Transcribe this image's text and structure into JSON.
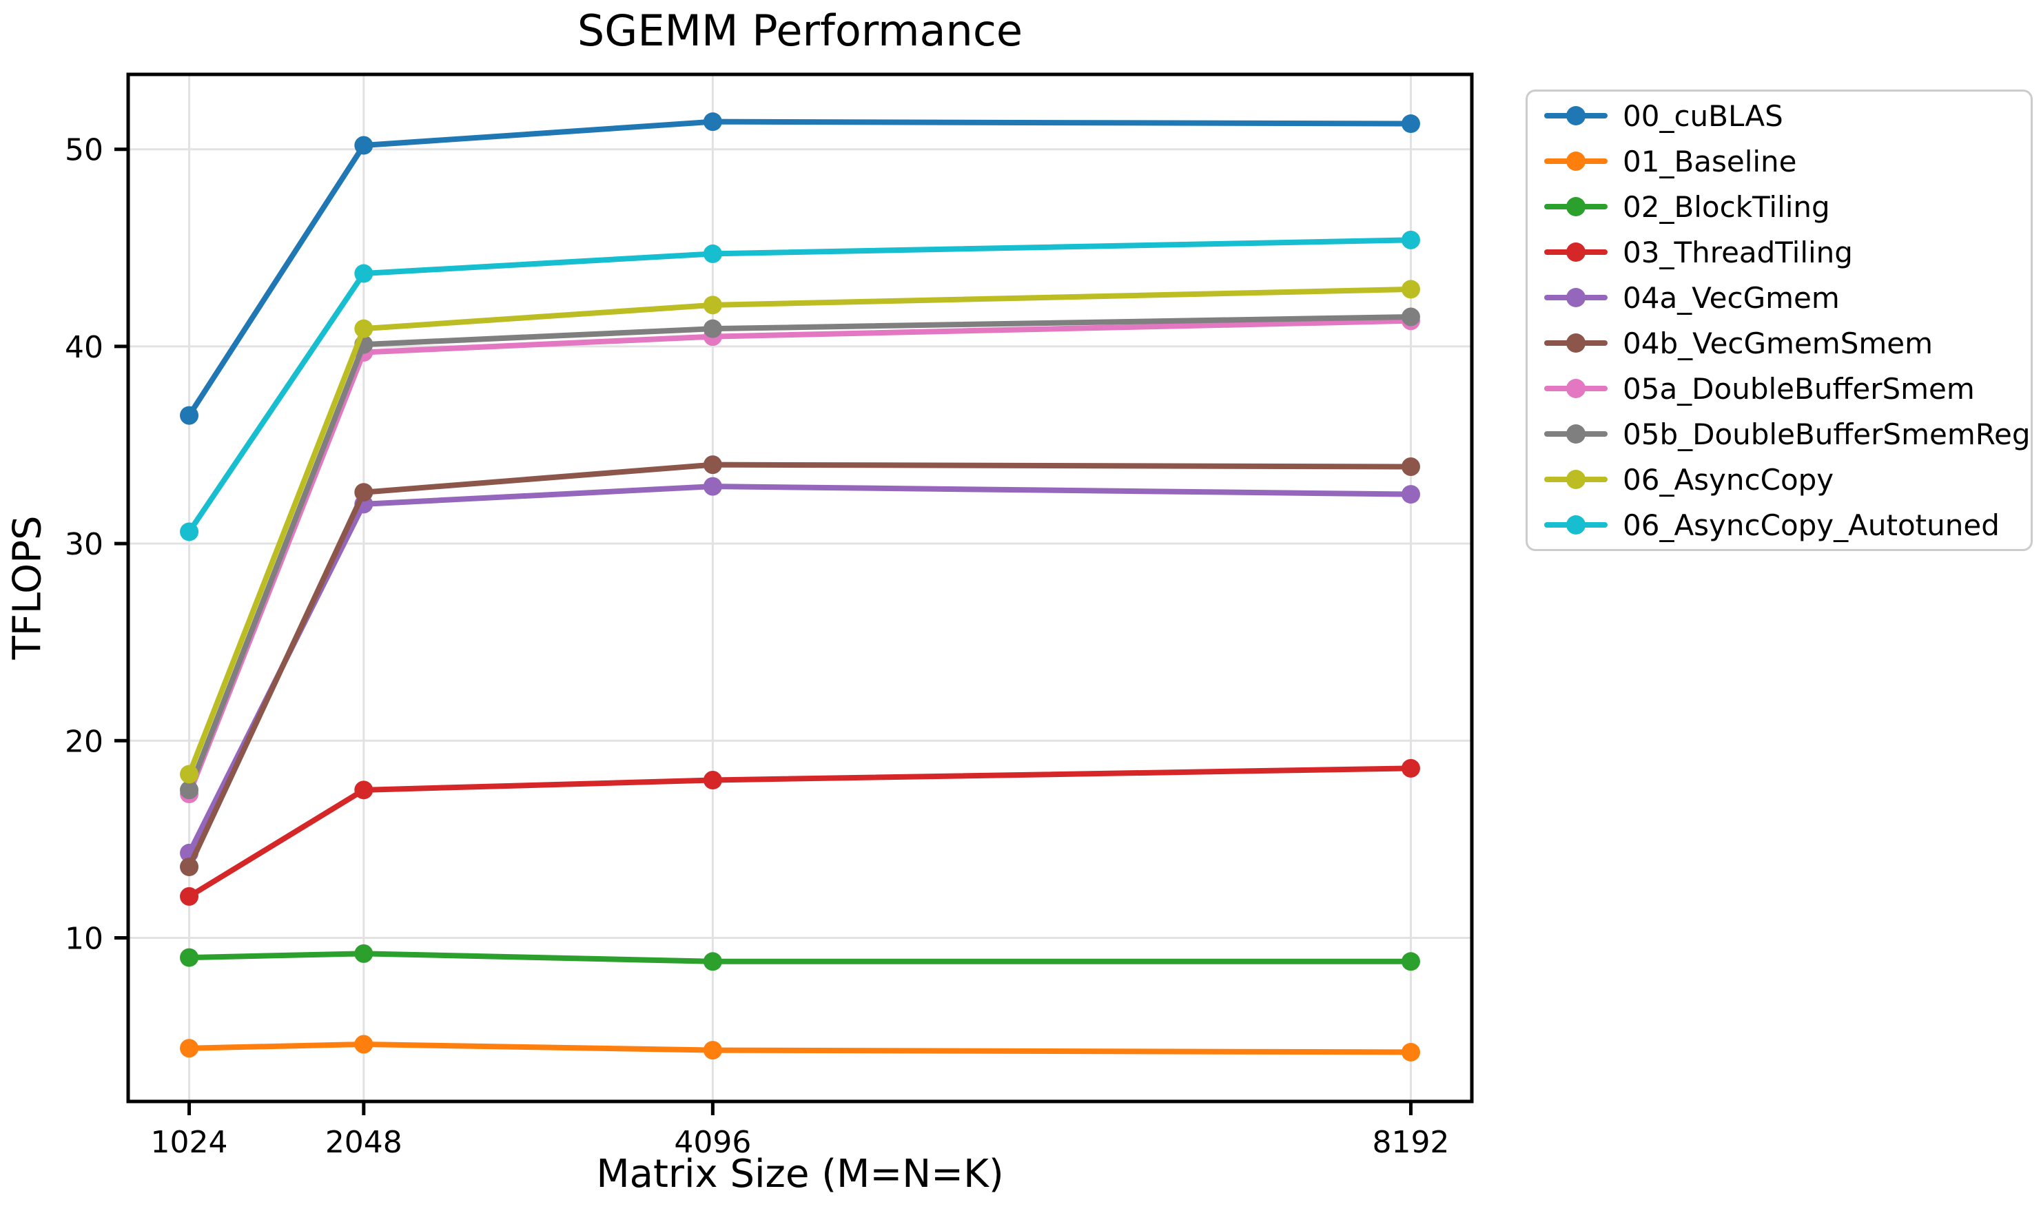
{
  "chart_data": {
    "type": "line",
    "title": "SGEMM Performance",
    "xlabel": "Matrix Size (M=N=K)",
    "ylabel": "TFLOPS",
    "x": [
      1024,
      2048,
      4096,
      8192
    ],
    "x_tick_labels": [
      "1024",
      "2048",
      "4096",
      "8192"
    ],
    "yticks": [
      10,
      20,
      30,
      40,
      50
    ],
    "y_tick_labels": [
      "10",
      "20",
      "30",
      "40",
      "50"
    ],
    "xlim": [
      666,
      8550
    ],
    "ylim": [
      1.7,
      53.8
    ],
    "grid": true,
    "grid_color": "#e2e2e2",
    "background_color": "#ffffff",
    "legend_position": "right",
    "series": [
      {
        "name": "00_cuBLAS",
        "color": "#1f77b4",
        "values": [
          36.5,
          50.2,
          51.4,
          51.3
        ]
      },
      {
        "name": "01_Baseline",
        "color": "#ff7f0e",
        "values": [
          4.4,
          4.6,
          4.3,
          4.2
        ]
      },
      {
        "name": "02_BlockTiling",
        "color": "#2ca02c",
        "values": [
          9.0,
          9.2,
          8.8,
          8.8
        ]
      },
      {
        "name": "03_ThreadTiling",
        "color": "#d62728",
        "values": [
          12.1,
          17.5,
          18.0,
          18.6
        ]
      },
      {
        "name": "04a_VecGmem",
        "color": "#9467bd",
        "values": [
          14.3,
          32.0,
          32.9,
          32.5
        ]
      },
      {
        "name": "04b_VecGmemSmem",
        "color": "#8c564b",
        "values": [
          13.6,
          32.6,
          34.0,
          33.9
        ]
      },
      {
        "name": "05a_DoubleBufferSmem",
        "color": "#e377c2",
        "values": [
          17.3,
          39.7,
          40.5,
          41.3
        ]
      },
      {
        "name": "05b_DoubleBufferSmemReg",
        "color": "#7f7f7f",
        "values": [
          17.5,
          40.1,
          40.9,
          41.5
        ]
      },
      {
        "name": "06_AsyncCopy",
        "color": "#bcbd22",
        "values": [
          18.3,
          40.9,
          42.1,
          42.9
        ]
      },
      {
        "name": "06_AsyncCopy_Autotuned",
        "color": "#17becf",
        "values": [
          30.6,
          43.7,
          44.7,
          45.4
        ]
      }
    ]
  }
}
